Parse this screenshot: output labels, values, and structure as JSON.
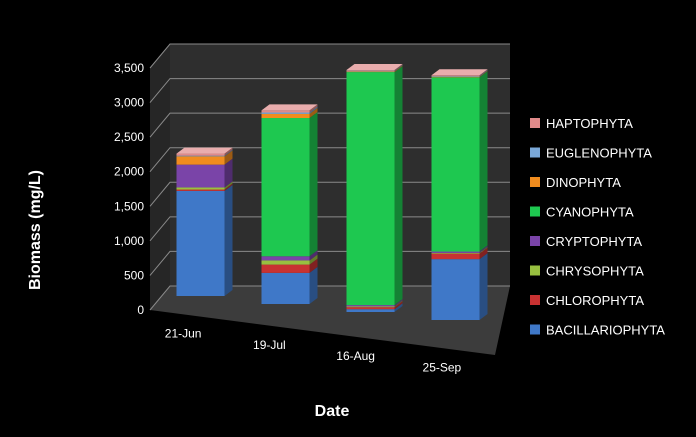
{
  "chart_data": {
    "type": "bar",
    "stacked": true,
    "three_d": true,
    "title": "",
    "xlabel": "Date",
    "ylabel": "Biomass (mg/L)",
    "ylim": [
      0,
      3500
    ],
    "yticks": [
      "0",
      "500",
      "1,000",
      "1,500",
      "2,000",
      "2,500",
      "3,000",
      "3,500"
    ],
    "categories": [
      "21-Jun",
      "19-Jul",
      "16-Aug",
      "25-Sep"
    ],
    "grid": true,
    "legend_position": "right",
    "series": [
      {
        "name": "BACILLARIOPHYTA",
        "color": "#3f78c8",
        "values": [
          1520,
          450,
          40,
          880
        ]
      },
      {
        "name": "CHLOROPHYTA",
        "color": "#c83232",
        "values": [
          20,
          120,
          30,
          80
        ]
      },
      {
        "name": "CHRYSOPHYTA",
        "color": "#98c040",
        "values": [
          30,
          60,
          10,
          10
        ]
      },
      {
        "name": "CRYPTOPHYTA",
        "color": "#7a44a8",
        "values": [
          330,
          60,
          20,
          20
        ]
      },
      {
        "name": "CYANOPHYTA",
        "color": "#1ec850",
        "values": [
          0,
          2000,
          3370,
          2520
        ]
      },
      {
        "name": "DINOPHYTA",
        "color": "#f08c1e",
        "values": [
          120,
          60,
          10,
          10
        ]
      },
      {
        "name": "EUGLENOPHYTA",
        "color": "#7aa8d8",
        "values": [
          10,
          20,
          10,
          10
        ]
      },
      {
        "name": "HAPTOPHYTA",
        "color": "#e08a8a",
        "values": [
          30,
          30,
          10,
          10
        ]
      }
    ]
  }
}
